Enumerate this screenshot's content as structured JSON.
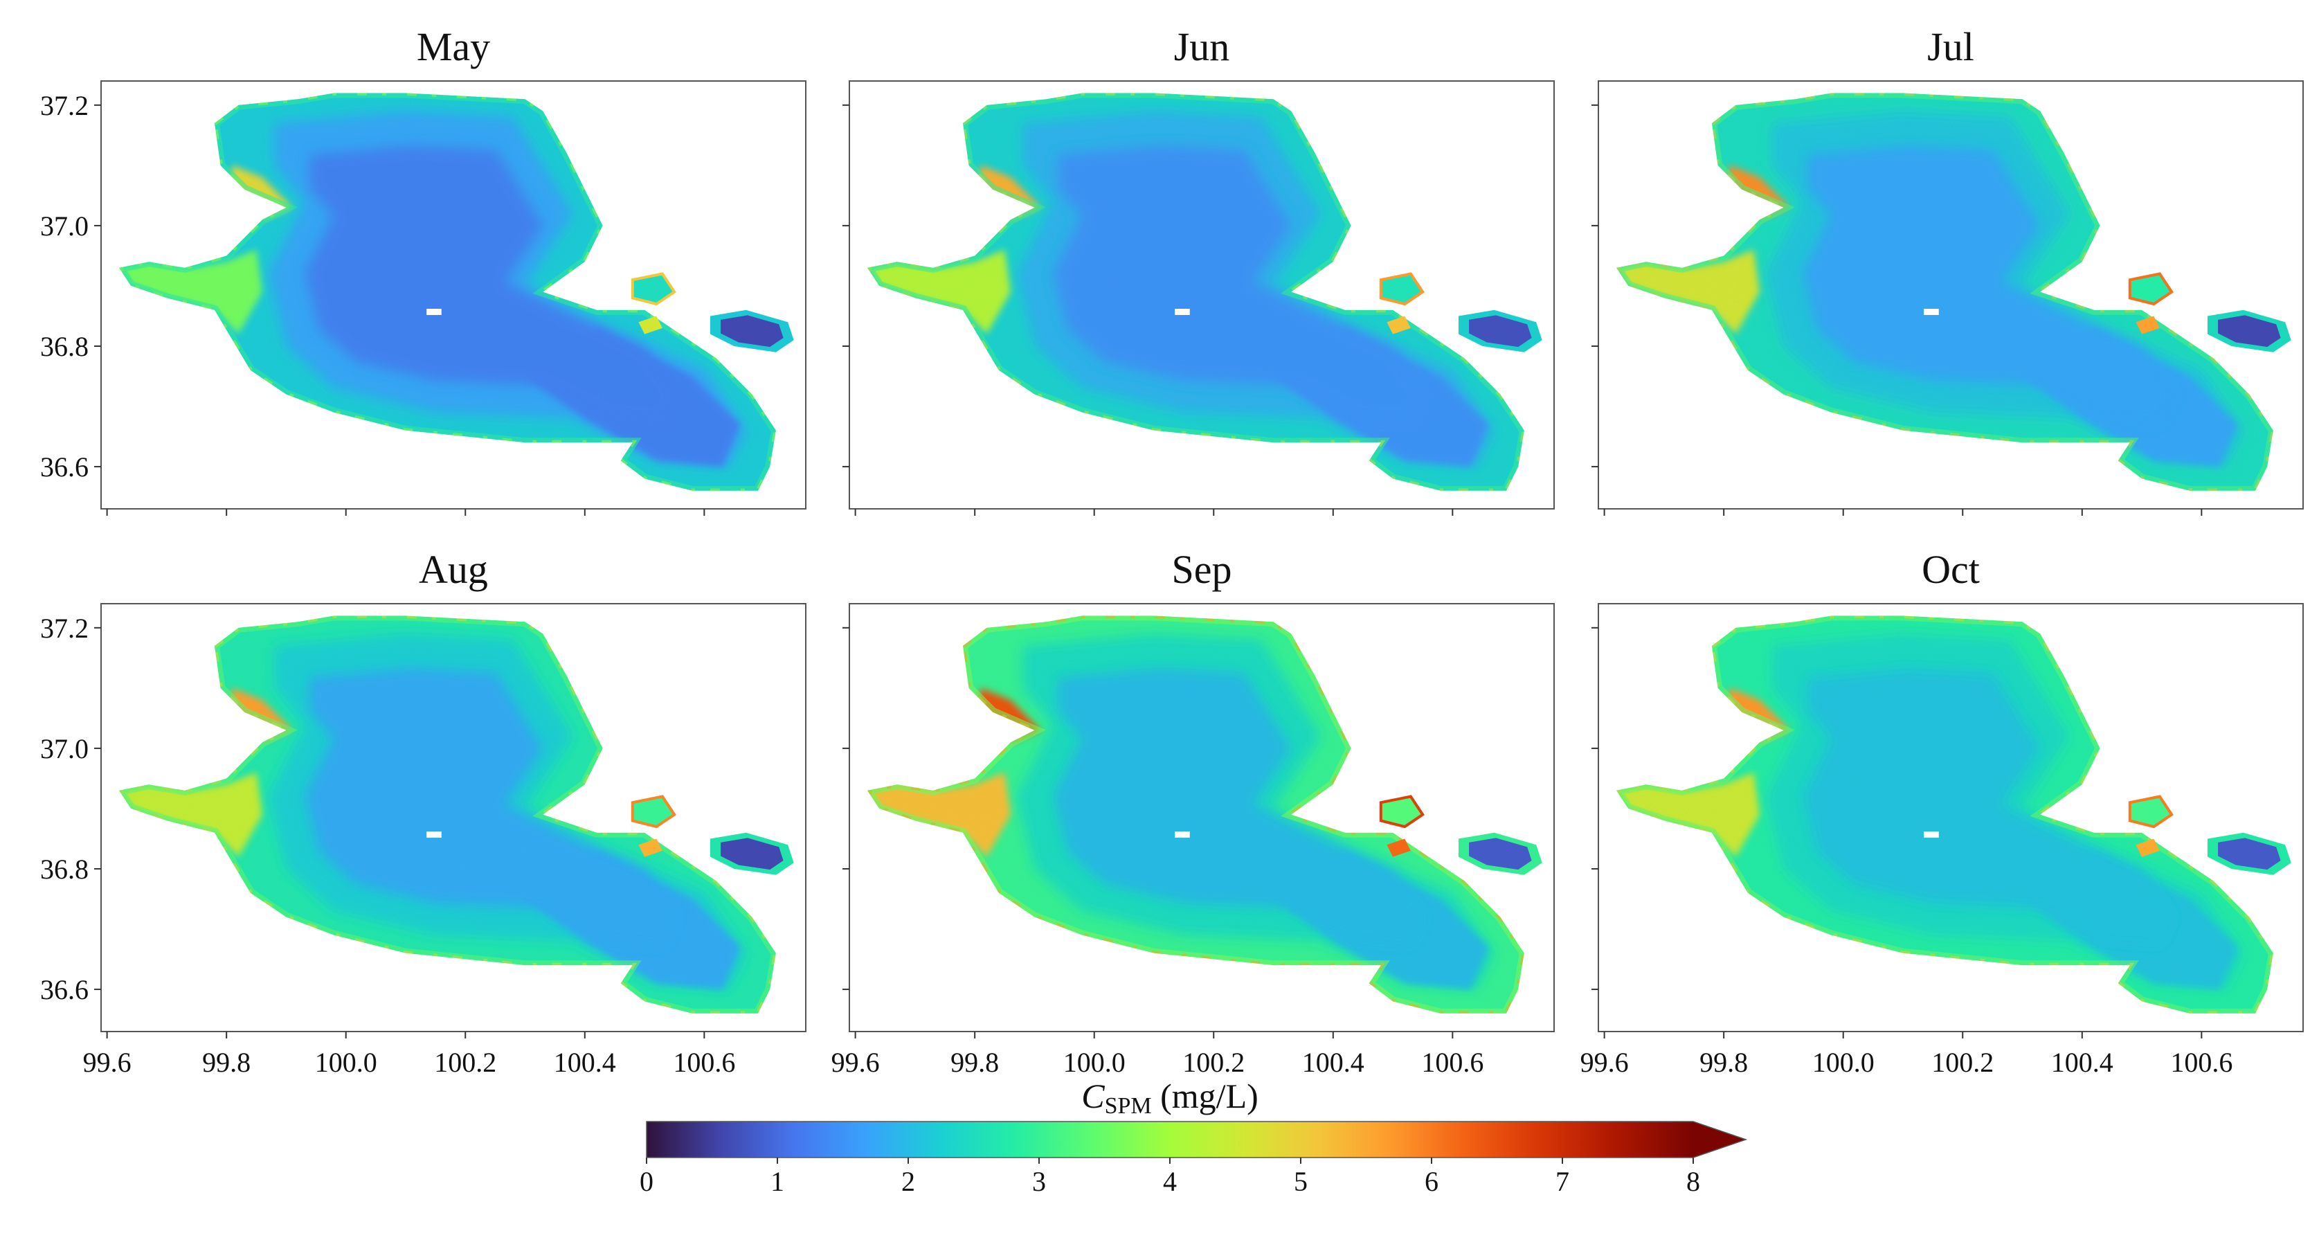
{
  "chart_data": {
    "type": "heatmap",
    "description_kind": "small-multiple maps of lake suspended particulate matter concentration",
    "panels": [
      {
        "title": "May",
        "offshore": 1.3,
        "shore": 2.2,
        "west_bay": 3.6,
        "east_lagoon": 0.6
      },
      {
        "title": "Jun",
        "offshore": 1.5,
        "shore": 2.3,
        "west_bay": 4.2,
        "east_lagoon": 0.7
      },
      {
        "title": "Jul",
        "offshore": 1.75,
        "shore": 2.5,
        "west_bay": 4.6,
        "east_lagoon": 0.6
      },
      {
        "title": "Aug",
        "offshore": 1.8,
        "shore": 2.7,
        "west_bay": 4.4,
        "east_lagoon": 0.6
      },
      {
        "title": "Sep",
        "offshore": 2.0,
        "shore": 3.0,
        "west_bay": 5.2,
        "east_lagoon": 0.8
      },
      {
        "title": "Oct",
        "offshore": 2.1,
        "shore": 2.8,
        "west_bay": 4.5,
        "east_lagoon": 0.8
      }
    ],
    "x_ticks": [
      "99.6",
      "99.8",
      "100.0",
      "100.2",
      "100.4",
      "100.6"
    ],
    "x_tick_values": [
      99.6,
      99.8,
      100.0,
      100.2,
      100.4,
      100.6
    ],
    "y_ticks": [
      "37.2",
      "37.0",
      "36.8",
      "36.6"
    ],
    "y_tick_values": [
      37.2,
      37.0,
      36.8,
      36.6
    ],
    "xlim": [
      99.59,
      100.77
    ],
    "ylim": [
      36.53,
      37.24
    ],
    "colorbar": {
      "label_main": "C",
      "label_sub": "SPM",
      "label_unit": " (mg/L)",
      "ticks": [
        "0",
        "1",
        "2",
        "3",
        "4",
        "5",
        "6",
        "7",
        "8"
      ],
      "tick_values": [
        0,
        1,
        2,
        3,
        4,
        5,
        6,
        7,
        8
      ],
      "range": [
        0,
        8
      ],
      "extend": "max",
      "colormap": "turbo"
    }
  }
}
